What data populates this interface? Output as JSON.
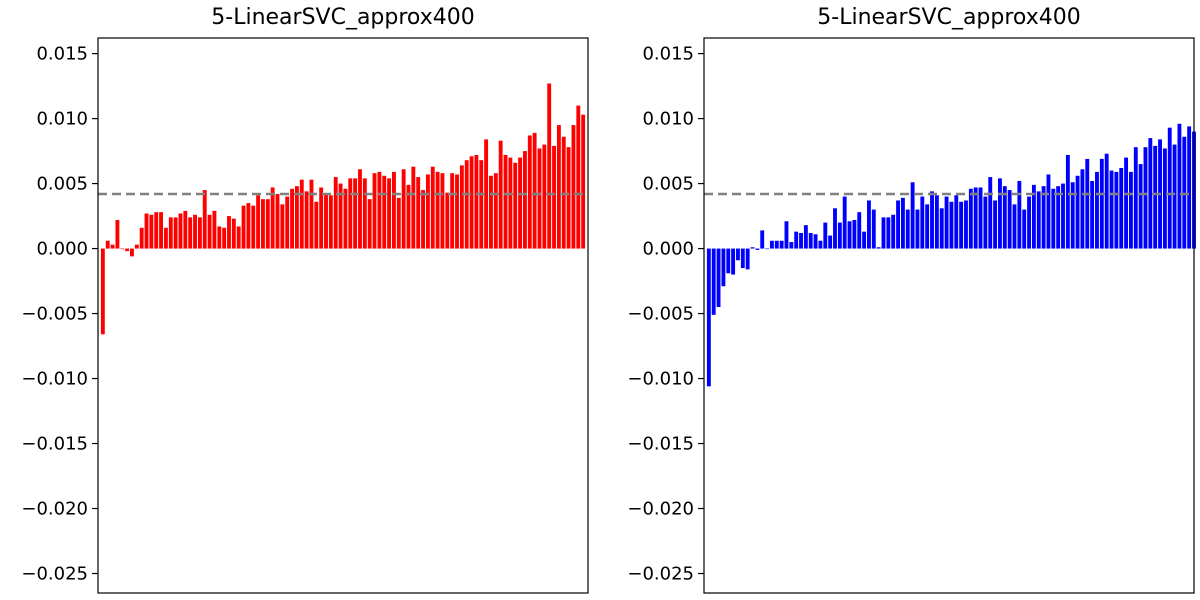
{
  "chart_data": [
    {
      "type": "bar",
      "title": "5-LinearSVC_approx400",
      "color": "#ff0000",
      "mean_line": 0.0042,
      "mean_line_color": "#808080",
      "ylim": [
        -0.0265,
        0.0162
      ],
      "yticks": [
        0.015,
        0.01,
        0.005,
        0.0,
        -0.005,
        -0.01,
        -0.015,
        -0.02,
        -0.025
      ],
      "ytick_labels": [
        "0.015",
        "0.010",
        "0.005",
        "0.000",
        "−0.005",
        "−0.010",
        "−0.015",
        "−0.020",
        "−0.025"
      ],
      "xlim": [
        -1,
        100
      ],
      "values": [
        -0.0066,
        0.0006,
        0.0003,
        0.0022,
        0.0,
        -0.0002,
        -0.0006,
        0.0003,
        0.0016,
        0.0027,
        0.0026,
        0.0028,
        0.0028,
        0.0016,
        0.0024,
        0.0024,
        0.0027,
        0.0029,
        0.0024,
        0.0026,
        0.0024,
        0.0045,
        0.0026,
        0.0029,
        0.0017,
        0.0016,
        0.0025,
        0.0023,
        0.0017,
        0.0033,
        0.0035,
        0.0033,
        0.0041,
        0.0038,
        0.0038,
        0.0047,
        0.0042,
        0.0034,
        0.004,
        0.0046,
        0.0048,
        0.0053,
        0.0044,
        0.0053,
        0.0036,
        0.0047,
        0.0042,
        0.0041,
        0.0055,
        0.005,
        0.0046,
        0.0054,
        0.0054,
        0.0061,
        0.0054,
        0.0038,
        0.0058,
        0.0059,
        0.0056,
        0.0054,
        0.0059,
        0.0039,
        0.0061,
        0.0049,
        0.0063,
        0.0055,
        0.0045,
        0.0057,
        0.0063,
        0.0059,
        0.0058,
        0.0043,
        0.0058,
        0.0057,
        0.0064,
        0.0068,
        0.0071,
        0.0072,
        0.0068,
        0.0084,
        0.0056,
        0.0058,
        0.0083,
        0.0072,
        0.007,
        0.0066,
        0.007,
        0.0075,
        0.0087,
        0.0089,
        0.0077,
        0.008,
        0.0127,
        0.0079,
        0.0095,
        0.0086,
        0.0078,
        0.0095,
        0.011,
        0.0103
      ]
    },
    {
      "type": "bar",
      "title": "5-LinearSVC_approx400",
      "color": "#0000ff",
      "mean_line": 0.0042,
      "mean_line_color": "#808080",
      "ylim": [
        -0.0265,
        0.0162
      ],
      "yticks": [
        0.015,
        0.01,
        0.005,
        0.0,
        -0.005,
        -0.01,
        -0.015,
        -0.02,
        -0.025
      ],
      "ytick_labels": [
        "0.015",
        "0.010",
        "0.005",
        "0.000",
        "−0.005",
        "−0.010",
        "−0.015",
        "−0.020",
        "−0.025"
      ],
      "xlim": [
        -1,
        100
      ],
      "values": [
        -0.0106,
        -0.0051,
        -0.0045,
        -0.0029,
        -0.0019,
        -0.002,
        -0.0009,
        -0.0015,
        -0.0016,
        0.0001,
        -0.0001,
        0.0014,
        0.0,
        0.0006,
        0.0006,
        0.0006,
        0.0021,
        0.0005,
        0.0013,
        0.0012,
        0.0018,
        0.0012,
        0.0011,
        0.0006,
        0.002,
        0.001,
        0.0031,
        0.002,
        0.004,
        0.0021,
        0.0022,
        0.0028,
        0.0013,
        0.0037,
        0.003,
        0.0001,
        0.0024,
        0.0024,
        0.0026,
        0.0037,
        0.0039,
        0.003,
        0.0051,
        0.003,
        0.004,
        0.0034,
        0.0044,
        0.0041,
        0.0031,
        0.004,
        0.0036,
        0.0041,
        0.0036,
        0.0037,
        0.0046,
        0.0047,
        0.0047,
        0.004,
        0.0055,
        0.0037,
        0.0054,
        0.0048,
        0.0045,
        0.0034,
        0.0052,
        0.003,
        0.004,
        0.0049,
        0.0044,
        0.0048,
        0.0057,
        0.0046,
        0.0048,
        0.005,
        0.0072,
        0.0051,
        0.0056,
        0.0061,
        0.0069,
        0.0052,
        0.0059,
        0.0069,
        0.0073,
        0.006,
        0.0059,
        0.0062,
        0.007,
        0.0059,
        0.0078,
        0.0065,
        0.0078,
        0.0085,
        0.0079,
        0.0084,
        0.0077,
        0.0093,
        0.008,
        0.0096,
        0.0086,
        0.0094,
        0.009
      ]
    }
  ]
}
